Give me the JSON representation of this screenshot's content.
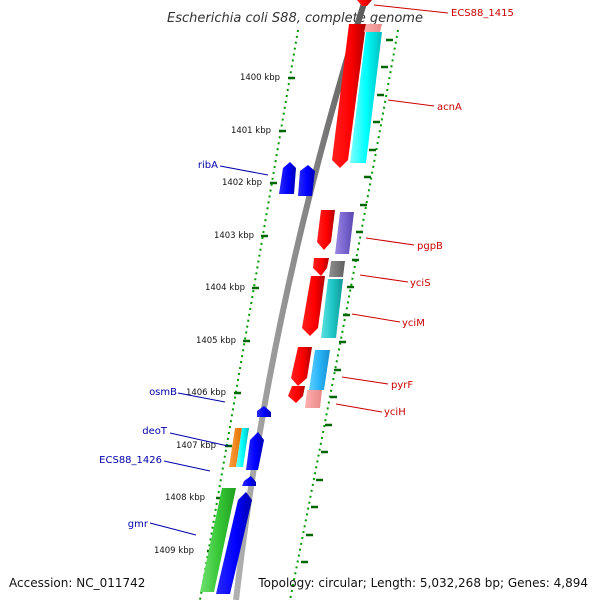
{
  "title": "Escherichia coli S88, complete genome",
  "footer": {
    "accession": "Accession: NC_011742",
    "topology": "Topology: circular; Length: 5,032,268 bp; Genes: 4,894"
  },
  "colors": {
    "forward_label": "#cc0000",
    "reverse_label": "#0000aa",
    "backbone": "#808080",
    "tick": "#006600"
  },
  "scale_ticks": [
    "1400 kbp",
    "1401 kbp",
    "1402 kbp",
    "1403 kbp",
    "1404 kbp",
    "1405 kbp",
    "1406 kbp",
    "1407 kbp",
    "1408 kbp",
    "1409 kbp"
  ],
  "forward_labels": [
    "ECS88_1415",
    "acnA",
    "pgpB",
    "yciS",
    "yciM",
    "pyrF",
    "yciH"
  ],
  "reverse_labels": [
    "ribA",
    "osmB",
    "deoT",
    "ECS88_1426",
    "gmr"
  ]
}
